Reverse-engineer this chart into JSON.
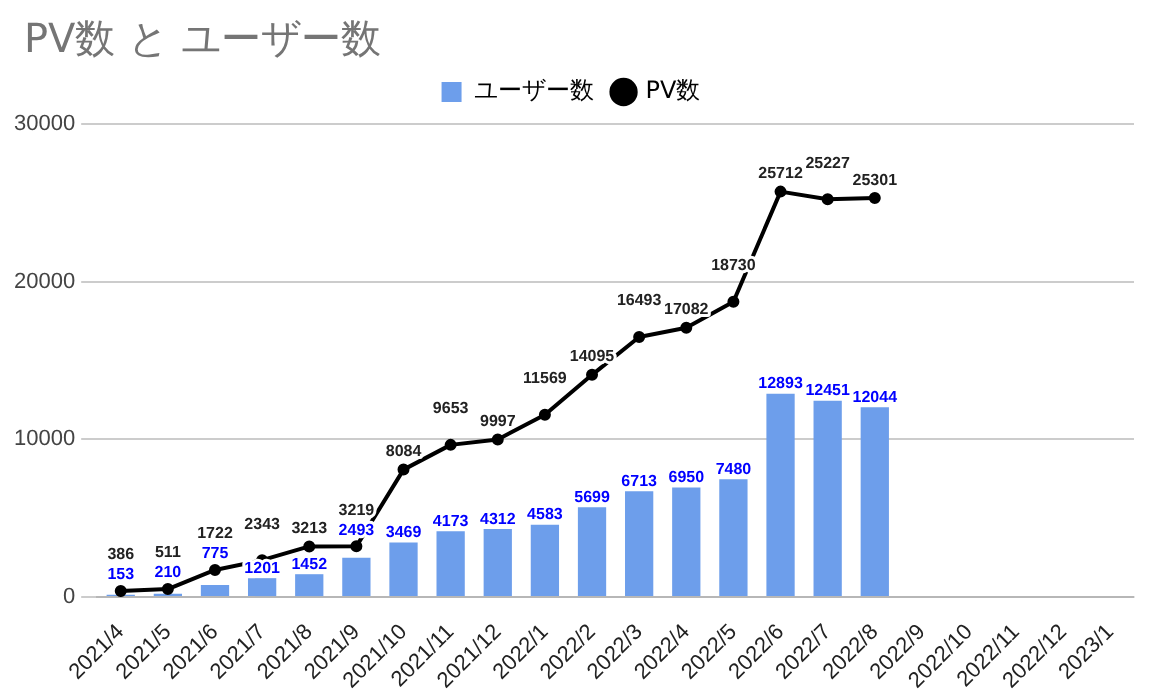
{
  "chart_data": {
    "type": "bar",
    "title": "PV数 と ユーザー数",
    "categories": [
      "2021/4",
      "2021/5",
      "2021/6",
      "2021/7",
      "2021/8",
      "2021/9",
      "2021/10",
      "2021/11",
      "2021/12",
      "2022/1",
      "2022/2",
      "2022/3",
      "2022/4",
      "2022/5",
      "2022/6",
      "2022/7",
      "2022/8",
      "2022/9",
      "2022/10",
      "2022/11",
      "2022/12",
      "2023/1"
    ],
    "series": [
      {
        "name": "ユーザー数",
        "color": "#6d9eeb",
        "values": [
          153,
          210,
          775,
          1201,
          1452,
          2493,
          3469,
          4173,
          4312,
          4583,
          5699,
          6713,
          6950,
          7480,
          12893,
          12451,
          12044,
          null,
          null,
          null,
          null,
          null
        ]
      },
      {
        "name": "PV数",
        "type": "line",
        "color": "#000000",
        "values": [
          386,
          511,
          1722,
          2343,
          3213,
          3219,
          8084,
          9653,
          9997,
          11569,
          14095,
          16493,
          17082,
          18730,
          25712,
          25227,
          25301,
          null,
          null,
          null,
          null,
          null
        ]
      }
    ],
    "ylim": [
      0,
      30000
    ],
    "yticks": [
      0,
      10000,
      20000,
      30000
    ],
    "grid": "y",
    "legend": "top",
    "marker": "circle",
    "line_style": "solid",
    "data_labels": true
  }
}
